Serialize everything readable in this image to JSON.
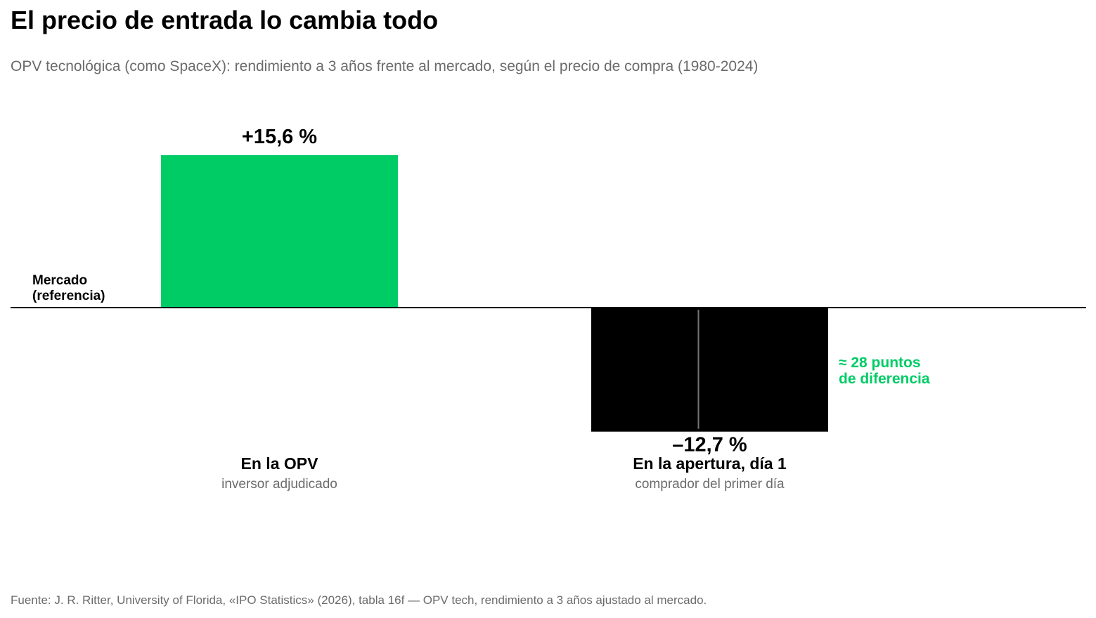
{
  "title": "El precio de entrada lo cambia todo",
  "subtitle": "OPV tecnológica (como SpaceX): rendimiento a 3 años frente al mercado, según el precio de compra (1980-2024)",
  "source": "Fuente: J. R. Ritter, University of Florida, «IPO Statistics» (2026), tabla 16f — OPV tech, rendimiento a 3 años ajustado al mercado.",
  "colors": {
    "positive": "#00cc66",
    "negative": "#000000",
    "muted": "#6b6b6b",
    "accent": "#00cc66"
  },
  "chart_data": {
    "type": "bar",
    "baseline_label": [
      "Mercado",
      "(referencia)"
    ],
    "categories": [
      "En la OPV",
      "En la apertura, día 1"
    ],
    "category_sublabels": [
      "inversor adjudicado",
      "comprador del primer día"
    ],
    "values": [
      15.6,
      -12.7
    ],
    "value_labels": [
      "+15,6 %",
      "–12,7 %"
    ],
    "annotation": [
      "≈ 28 puntos",
      "de diferencia"
    ],
    "ylim": [
      -12.7,
      15.6
    ],
    "grid": false,
    "legend": "none"
  }
}
